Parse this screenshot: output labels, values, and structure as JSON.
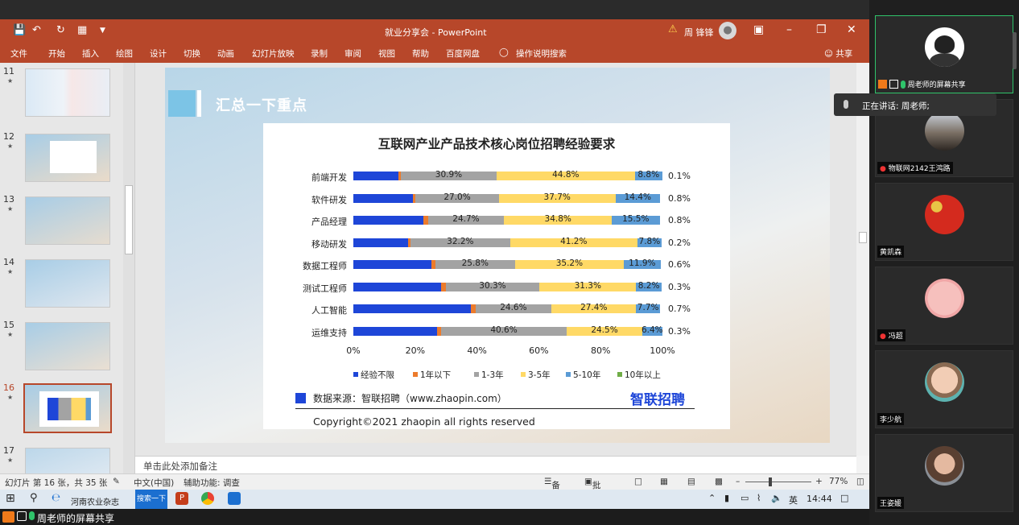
{
  "window": {
    "title": "就业分享会 - PowerPoint",
    "user": "周 锋锋"
  },
  "ribbon": {
    "tabs": [
      "文件",
      "开始",
      "插入",
      "绘图",
      "设计",
      "切换",
      "动画",
      "幻灯片放映",
      "录制",
      "审阅",
      "视图",
      "帮助",
      "百度网盘",
      "操作说明搜索"
    ],
    "share": "共享"
  },
  "thumbnails": [
    {
      "num": "11"
    },
    {
      "num": "12"
    },
    {
      "num": "13"
    },
    {
      "num": "14"
    },
    {
      "num": "15"
    },
    {
      "num": "16",
      "selected": true
    },
    {
      "num": "17"
    }
  ],
  "slide": {
    "heading": "汇总一下重点"
  },
  "chart_data": {
    "type": "bar",
    "stacked": true,
    "orientation": "horizontal",
    "title": "互联网产业产品技术核心岗位招聘经验要求",
    "categories": [
      "前端开发",
      "软件研发",
      "产品经理",
      "移动研发",
      "数据工程师",
      "测试工程师",
      "人工智能",
      "运维支持"
    ],
    "series": [
      {
        "name": "经验不限",
        "color": "#1e46d8",
        "values": [
          14.6,
          19.2,
          22.7,
          17.7,
          25.3,
          28.3,
          38.0,
          27.2
        ]
      },
      {
        "name": "1年以下",
        "color": "#ec7b2c",
        "values": [
          0.8,
          0.9,
          1.4,
          0.8,
          1.2,
          1.6,
          1.5,
          1.2
        ]
      },
      {
        "name": "1-3年",
        "color": "#a3a3a3",
        "values": [
          30.9,
          27.0,
          24.7,
          32.2,
          25.8,
          30.3,
          24.6,
          40.6
        ]
      },
      {
        "name": "3-5年",
        "color": "#ffd966",
        "values": [
          44.8,
          37.7,
          34.8,
          41.2,
          35.2,
          31.3,
          27.4,
          24.5
        ]
      },
      {
        "name": "5-10年",
        "color": "#5b9bd5",
        "values": [
          8.8,
          14.4,
          15.5,
          7.8,
          11.9,
          8.2,
          7.7,
          6.4
        ]
      },
      {
        "name": "10年以上",
        "color": "#70ad47",
        "values": [
          0.1,
          0.8,
          0.8,
          0.2,
          0.6,
          0.3,
          0.7,
          0.3
        ]
      }
    ],
    "labeled_series": [
      "1-3年",
      "3-5年",
      "5-10年"
    ],
    "xlim": [
      0,
      100
    ],
    "xticks": [
      "0%",
      "20%",
      "40%",
      "60%",
      "80%",
      "100%"
    ],
    "legend_position": "bottom",
    "source": "数据来源：智联招聘（www.zhaopin.com）",
    "logo_text": "智联招聘",
    "copyright": "Copyright©2021 zhaopin all rights reserved"
  },
  "notes_placeholder": "单击此处添加备注",
  "status": {
    "slide_info": "幻灯片 第 16 张，共 35 张",
    "language": "中文(中国)",
    "accessibility": "辅助功能: 调查",
    "notes": "备注",
    "comments": "批注",
    "zoom": "77%"
  },
  "taskbar": {
    "browser_tab": "河南农业杂志",
    "search_btn": "搜索一下",
    "ime": "英",
    "time": "14:44"
  },
  "share_bar": {
    "label": "周老师的屏幕共享"
  },
  "meeting": {
    "speaking": "正在讲话: 周老师;",
    "participants": [
      {
        "name": "周老师的屏幕共享",
        "active": true
      },
      {
        "name": "物联网2142王鸿路"
      },
      {
        "name": "黄凯森"
      },
      {
        "name": "冯超"
      },
      {
        "name": "李少航"
      },
      {
        "name": "王姿媛"
      }
    ]
  }
}
